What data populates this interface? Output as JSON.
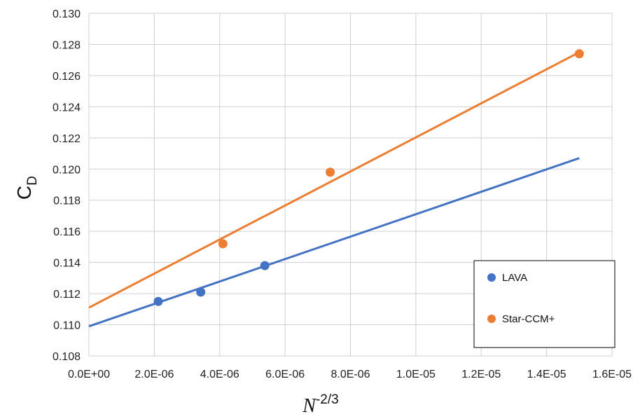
{
  "chart_data": {
    "type": "scatter",
    "xlabel": "N",
    "xlabel_sup": "-2/3",
    "ylabel": "C",
    "ylabel_sub": "D",
    "xlim": [
      0,
      1.6e-05
    ],
    "ylim": [
      0.108,
      0.13
    ],
    "x_ticks": [
      0,
      2e-06,
      4e-06,
      6e-06,
      8e-06,
      1e-05,
      1.2e-05,
      1.4e-05,
      1.6e-05
    ],
    "x_tick_labels": [
      "0.0E+00",
      "2.0E-06",
      "4.0E-06",
      "6.0E-06",
      "8.0E-06",
      "1.0E-05",
      "1.2E-05",
      "1.4E-05",
      "1.6E-05"
    ],
    "y_ticks": [
      0.108,
      0.11,
      0.112,
      0.114,
      0.116,
      0.118,
      0.12,
      0.122,
      0.124,
      0.126,
      0.128,
      0.13
    ],
    "y_tick_labels": [
      "0.108",
      "0.110",
      "0.112",
      "0.114",
      "0.116",
      "0.118",
      "0.120",
      "0.122",
      "0.124",
      "0.126",
      "0.128",
      "0.130"
    ],
    "grid": true,
    "legend_position": "bottom-right",
    "series": [
      {
        "name": "LAVA",
        "color": "#4472C4",
        "x": [
          2.12e-06,
          3.42e-06,
          5.38e-06
        ],
        "y": [
          0.1115,
          0.1121,
          0.1138
        ],
        "trendline": {
          "x": [
            0,
            1.5e-05
          ],
          "y": [
            0.1099,
            0.1207
          ]
        }
      },
      {
        "name": "Star-CCM+",
        "color": "#ED7D31",
        "x": [
          4.1e-06,
          7.38e-06,
          1.5e-05
        ],
        "y": [
          0.1152,
          0.1198,
          0.1274
        ],
        "trendline": {
          "x": [
            0,
            1.5e-05
          ],
          "y": [
            0.1111,
            0.1275
          ]
        }
      }
    ]
  }
}
